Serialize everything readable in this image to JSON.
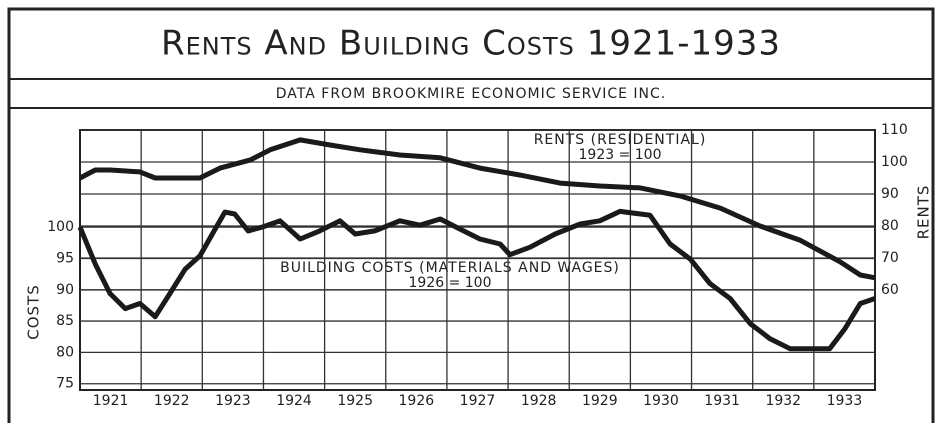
{
  "chart_data": {
    "type": "line",
    "title": "Rents And Building Costs 1921-1933",
    "subtitle": "DATA FROM BROOKMIRE ECONOMIC SERVICE INC.",
    "ylabel": "COSTS",
    "y2label": "RENTS",
    "categories": [
      "1921",
      "1922",
      "1923",
      "1924",
      "1925",
      "1926",
      "1927",
      "1928",
      "1929",
      "1930",
      "1931",
      "1932",
      "1933"
    ],
    "xlim": [
      1921,
      1934
    ],
    "ylim": [
      74,
      115.5
    ],
    "yticks": [
      75,
      80,
      85,
      90,
      95,
      100
    ],
    "y2lim": [
      28.75,
      110
    ],
    "y2ticks": [
      60,
      70,
      80,
      90,
      100,
      110
    ],
    "grid": true,
    "series": [
      {
        "name": "RENTS (RESIDENTIAL)",
        "base": "1923 = 100",
        "color": "#1a1a1a",
        "axis": "y2",
        "x": [
          1921.0,
          1921.25,
          1921.49,
          1921.98,
          1922.23,
          1922.96,
          1923.29,
          1923.78,
          1924.11,
          1924.6,
          1925.09,
          1925.58,
          1926.23,
          1926.89,
          1927.54,
          1928.2,
          1928.85,
          1929.5,
          1930.16,
          1930.81,
          1931.47,
          1932.12,
          1932.77,
          1933.43,
          1933.76,
          1934.0
        ],
        "values": [
          95,
          97.5,
          97.5,
          96.9,
          95,
          95,
          98.1,
          100.6,
          103.8,
          106.9,
          105.3,
          103.8,
          102.2,
          101.3,
          98.1,
          95.9,
          93.4,
          92.5,
          91.9,
          89.4,
          85.6,
          80,
          75.6,
          68.8,
          64.7,
          63.8
        ]
      },
      {
        "name": "BUILDING COSTS (MATERIALS AND WAGES)",
        "base": "1926 = 100",
        "color": "#1a1a1a",
        "x": [
          1921.0,
          1921.25,
          1921.49,
          1921.74,
          1921.98,
          1922.23,
          1922.47,
          1922.72,
          1922.96,
          1923.21,
          1923.37,
          1923.53,
          1923.75,
          1923.98,
          1924.27,
          1924.6,
          1924.92,
          1925.25,
          1925.5,
          1925.82,
          1926.23,
          1926.56,
          1926.89,
          1927.21,
          1927.54,
          1927.87,
          1928.03,
          1928.36,
          1928.77,
          1929.18,
          1929.5,
          1929.83,
          1930.32,
          1930.65,
          1930.98,
          1931.3,
          1931.63,
          1931.96,
          1932.28,
          1932.61,
          1932.94,
          1933.26,
          1933.51,
          1933.76,
          1934.0
        ],
        "values": [
          100,
          94.1,
          89.4,
          87.0,
          87.8,
          85.7,
          89.4,
          93.3,
          95.4,
          99.7,
          102.4,
          102.1,
          99.4,
          100,
          101.0,
          98.1,
          99.4,
          101.0,
          98.9,
          99.4,
          101.0,
          100.3,
          101.3,
          99.7,
          98.1,
          97.3,
          95.6,
          96.8,
          98.9,
          100.5,
          101.0,
          102.5,
          101.9,
          97.3,
          94.9,
          91.0,
          88.6,
          84.6,
          82.2,
          80.6,
          80.6,
          80.6,
          83.8,
          87.8,
          88.6
        ]
      }
    ]
  }
}
